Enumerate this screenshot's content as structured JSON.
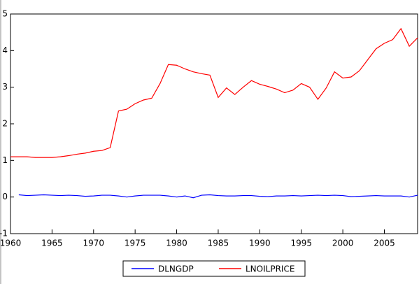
{
  "chart_data": {
    "type": "line",
    "x": [
      1960,
      1961,
      1962,
      1963,
      1964,
      1965,
      1966,
      1967,
      1968,
      1969,
      1970,
      1971,
      1972,
      1973,
      1974,
      1975,
      1976,
      1977,
      1978,
      1979,
      1980,
      1981,
      1982,
      1983,
      1984,
      1985,
      1986,
      1987,
      1988,
      1989,
      1990,
      1991,
      1992,
      1993,
      1994,
      1995,
      1996,
      1997,
      1998,
      1999,
      2000,
      2001,
      2002,
      2003,
      2004,
      2005,
      2006,
      2007,
      2008,
      2009
    ],
    "series": [
      {
        "name": "DLNGDP",
        "color": "#0000ff",
        "values": [
          null,
          0.06,
          0.04,
          0.05,
          0.06,
          0.05,
          0.04,
          0.05,
          0.04,
          0.02,
          0.03,
          0.05,
          0.05,
          0.03,
          0.0,
          0.03,
          0.05,
          0.05,
          0.05,
          0.03,
          0.0,
          0.03,
          -0.02,
          0.05,
          0.06,
          0.04,
          0.03,
          0.03,
          0.04,
          0.04,
          0.02,
          0.01,
          0.03,
          0.03,
          0.04,
          0.03,
          0.04,
          0.05,
          0.04,
          0.05,
          0.04,
          0.01,
          0.02,
          0.03,
          0.04,
          0.03,
          0.03,
          0.03,
          0.0,
          0.05
        ]
      },
      {
        "name": "LNOILPRICE",
        "color": "#ff0000",
        "values": [
          1.1,
          1.1,
          1.1,
          1.08,
          1.08,
          1.08,
          1.1,
          1.13,
          1.17,
          1.2,
          1.25,
          1.27,
          1.35,
          2.35,
          2.4,
          2.55,
          2.65,
          2.7,
          3.1,
          3.62,
          3.6,
          3.5,
          3.42,
          3.37,
          3.33,
          2.72,
          2.98,
          2.8,
          3.0,
          3.18,
          3.08,
          3.02,
          2.95,
          2.85,
          2.92,
          3.1,
          3.0,
          2.67,
          2.98,
          3.42,
          3.25,
          3.28,
          3.45,
          3.75,
          4.05,
          4.2,
          4.3,
          4.6,
          4.12,
          4.35
        ]
      }
    ],
    "xlim": [
      1960,
      2009
    ],
    "xticks": [
      1960,
      1965,
      1970,
      1975,
      1980,
      1985,
      1990,
      1995,
      2000,
      2005
    ],
    "ylim": [
      -1,
      5
    ],
    "yticks": [
      -1,
      0,
      1,
      2,
      3,
      4,
      5
    ],
    "legend": "bottom"
  }
}
